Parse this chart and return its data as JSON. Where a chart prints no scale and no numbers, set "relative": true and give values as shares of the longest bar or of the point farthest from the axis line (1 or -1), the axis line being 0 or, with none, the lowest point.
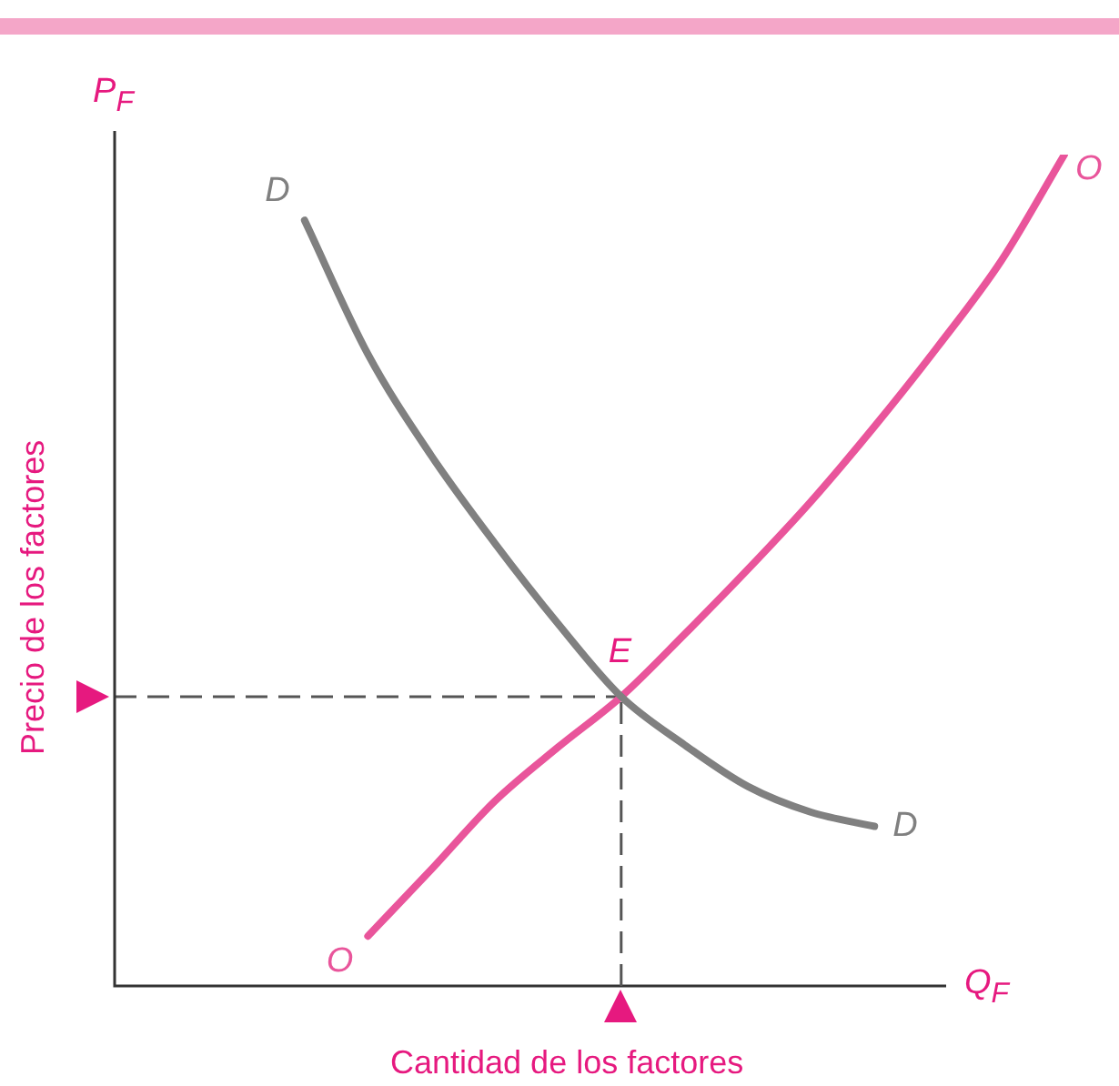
{
  "chart_data": {
    "type": "line",
    "relative": true,
    "xlabel": "Cantidad de los factores",
    "ylabel": "Precio de los factores",
    "legend": false,
    "marker": "none",
    "line_style": "solid",
    "categories": [
      null,
      null,
      null,
      null,
      null,
      null,
      null,
      null,
      null,
      null,
      null,
      null,
      null,
      null,
      null,
      null
    ],
    "series": [
      {
        "name": "D",
        "color": "#808080",
        "values": [
          null,
          null,
          null,
          0.921,
          0.76,
          0.638,
          0.533,
          0.436,
          0.348,
          0.29,
          0.24,
          0.209,
          0.192,
          null,
          null,
          null
        ]
      },
      {
        "name": "O",
        "color": "#e9559b",
        "values": [
          null,
          null,
          null,
          null,
          0.06,
          0.14,
          0.222,
          0.287,
          0.348,
          0.423,
          0.501,
          0.583,
          0.673,
          0.769,
          0.872,
          1
        ]
      },
      {
        "color": "#555555",
        "line_style": "dashed",
        "values": [
          0.348,
          0.348,
          0.348,
          0.348,
          0.348,
          0.348,
          0.348,
          0.348,
          0.348,
          null,
          null,
          null,
          null,
          null,
          null,
          null
        ]
      }
    ],
    "annotations": [
      "P$_{F}$",
      "Q$_{F}$",
      "E"
    ]
  }
}
